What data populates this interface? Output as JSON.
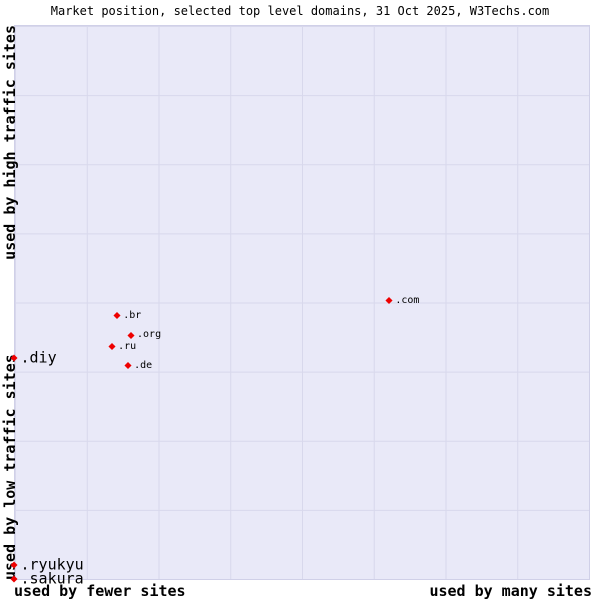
{
  "title": "Market position, selected top level domains, 31 Oct 2025, W3Techs.com",
  "axes": {
    "y_top": "used by high traffic sites",
    "y_bottom": "used by low traffic sites",
    "x_left": "used by fewer sites",
    "x_right": "used by many sites"
  },
  "colors": {
    "plot_background": "#e9e9f8",
    "grid_line": "#d8d8ec",
    "marker": "#ee0000",
    "text": "#000000"
  },
  "chart_data": {
    "type": "scatter",
    "title": "Market position, selected top level domains, 31 Oct 2025, W3Techs.com",
    "x_axis": {
      "label_left": "used by fewer sites",
      "label_right": "used by many sites"
    },
    "y_axis": {
      "label_top": "used by high traffic sites",
      "label_bottom": "used by low traffic sites"
    },
    "grid": true,
    "marker_shape": "diamond",
    "marker_color": "#ee0000",
    "points": [
      {
        "label": ".com",
        "x_pct": 65.3,
        "y_pct": 49.7,
        "emphasis": "small"
      },
      {
        "label": ".br",
        "x_pct": 17.9,
        "y_pct": 52.4,
        "emphasis": "small"
      },
      {
        "label": ".org",
        "x_pct": 20.3,
        "y_pct": 55.9,
        "emphasis": "small"
      },
      {
        "label": ".ru",
        "x_pct": 17.0,
        "y_pct": 58.0,
        "emphasis": "small"
      },
      {
        "label": ".de",
        "x_pct": 19.8,
        "y_pct": 61.4,
        "emphasis": "small"
      },
      {
        "label": ".diy",
        "x_pct": 0.0,
        "y_pct": 60.0,
        "emphasis": "large"
      },
      {
        "label": ".ryukyu",
        "x_pct": 0.0,
        "y_pct": 97.5,
        "emphasis": "large"
      },
      {
        "label": ".sakura",
        "x_pct": 0.0,
        "y_pct": 100.0,
        "emphasis": "large"
      }
    ]
  }
}
